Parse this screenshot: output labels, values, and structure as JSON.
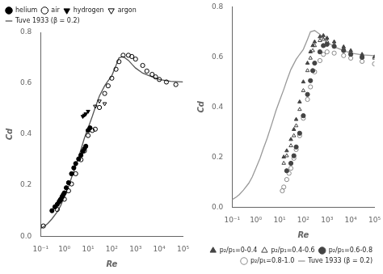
{
  "chart_data": [
    {
      "type": "scatter",
      "xlabel": "Re",
      "ylabel": "Cd",
      "log": "x",
      "grid": false,
      "legend": "upper left",
      "xlim": [
        0.1,
        100000
      ],
      "xticks": [
        {
          "value": 0.1,
          "label": "10⁻¹"
        },
        {
          "value": 1,
          "label": "10⁰"
        },
        {
          "value": 10,
          "label": "10¹"
        },
        {
          "value": 100,
          "label": "10²"
        },
        {
          "value": 1000,
          "label": "10³"
        },
        {
          "value": 10000,
          "label": "10⁴"
        },
        {
          "value": 100000,
          "label": "10⁵"
        }
      ],
      "ylim": [
        0,
        0.8
      ],
      "yticks": [
        {
          "value": 0,
          "label": "0.0"
        },
        0.2,
        0.4,
        0.6,
        0.8
      ],
      "series": [
        {
          "name": "helium",
          "color": "#000000",
          "marker": "circle",
          "x": [
            0.3,
            0.4,
            0.5,
            0.6,
            0.65,
            0.7,
            0.8,
            0.9,
            1.0,
            1.2,
            1.5,
            2.0,
            2.5,
            3.0,
            4.0,
            5.0,
            6.0,
            7.0,
            8.0,
            10.0,
            12.0
          ],
          "values": [
            0.1,
            0.115,
            0.125,
            0.135,
            0.14,
            0.145,
            0.155,
            0.163,
            0.17,
            0.19,
            0.21,
            0.245,
            0.268,
            0.285,
            0.303,
            0.318,
            0.333,
            0.343,
            0.353,
            0.415,
            0.425
          ]
        },
        {
          "name": "air",
          "color": "#000000",
          "marker": "circle-open",
          "x": [
            0.13,
            0.5,
            1.0,
            1.5,
            2.0,
            3.0,
            5.0,
            7.0,
            10.0,
            15.0,
            20.0,
            30.0,
            50.0,
            70.0,
            100.0,
            150.0,
            200.0,
            300.0,
            500.0,
            700.0,
            1000.0,
            2000.0,
            3000.0,
            5000.0,
            7000.0,
            10000.0,
            20000.0,
            50000.0
          ],
          "values": [
            0.04,
            0.105,
            0.145,
            0.178,
            0.205,
            0.245,
            0.3,
            0.335,
            0.395,
            0.415,
            0.42,
            0.505,
            0.56,
            0.59,
            0.62,
            0.655,
            0.685,
            0.71,
            0.71,
            0.705,
            0.695,
            0.67,
            0.648,
            0.635,
            0.625,
            0.615,
            0.605,
            0.595
          ]
        },
        {
          "name": "hydrogen",
          "color": "#000000",
          "marker": "triangle-down",
          "x": [
            6.0,
            7.0,
            8.0,
            10.0
          ],
          "values": [
            0.47,
            0.475,
            0.48,
            0.49
          ]
        },
        {
          "name": "argon",
          "color": "#000000",
          "marker": "triangle-down-open",
          "x": [
            20.0,
            30.0,
            50.0
          ],
          "values": [
            0.51,
            0.53,
            0.52
          ]
        },
        {
          "name": "Tuve 1933 (β = 0.2)",
          "color": "#555555",
          "type": "line",
          "line_style": "solid",
          "x": [
            0.1,
            0.15,
            0.2,
            0.3,
            0.5,
            0.7,
            1.0,
            1.5,
            2.0,
            3.0,
            5.0,
            7.0,
            10,
            15,
            20,
            30,
            50,
            70,
            100,
            150,
            200,
            300,
            500,
            700,
            1000,
            2000,
            5000,
            10000,
            30000,
            100000
          ],
          "values": [
            0.03,
            0.04,
            0.05,
            0.068,
            0.095,
            0.12,
            0.155,
            0.195,
            0.23,
            0.275,
            0.34,
            0.385,
            0.425,
            0.47,
            0.505,
            0.55,
            0.59,
            0.61,
            0.63,
            0.67,
            0.7,
            0.705,
            0.69,
            0.675,
            0.66,
            0.64,
            0.625,
            0.615,
            0.608,
            0.605
          ]
        }
      ]
    },
    {
      "type": "scatter",
      "xlabel": "Re",
      "ylabel": "Cd",
      "log": "x",
      "grid": false,
      "legend": "lower right",
      "xlim": [
        0.1,
        100000
      ],
      "xticks": [
        {
          "value": 0.1,
          "label": "10⁻¹"
        },
        {
          "value": 1,
          "label": "10⁰"
        },
        {
          "value": 10,
          "label": "10¹"
        },
        {
          "value": 100,
          "label": "10²"
        },
        {
          "value": 1000,
          "label": "10³"
        },
        {
          "value": 10000,
          "label": "10⁴"
        },
        {
          "value": 100000,
          "label": "10⁵"
        }
      ],
      "ylim": [
        0,
        0.8
      ],
      "yticks": [
        {
          "value": 0,
          "label": "0.0"
        },
        0.2,
        0.4,
        0.6,
        0.8
      ],
      "series": [
        {
          "name": "p₂/p₁=0-0.4",
          "color": "#444444",
          "marker": "triangle-up",
          "x": [
            15.0,
            20.0,
            30.0,
            40.0,
            50.0,
            70.0,
            100.0,
            150.0,
            200.0,
            250.0,
            300.0,
            500.0,
            700.0,
            1000.0,
            2000.0,
            5000.0,
            10000.0,
            30000.0,
            100000.0
          ],
          "values": [
            0.2,
            0.225,
            0.27,
            0.31,
            0.35,
            0.42,
            0.5,
            0.575,
            0.62,
            0.645,
            0.66,
            0.68,
            0.685,
            0.675,
            0.66,
            0.64,
            0.625,
            0.61,
            0.6
          ]
        },
        {
          "name": "p₂/p₁=0.4-0.6",
          "color": "#444444",
          "marker": "triangle-up-open",
          "x": [
            15.0,
            20.0,
            30.0,
            40.0,
            50.0,
            70.0,
            100.0,
            150.0,
            200.0,
            250.0,
            300.0,
            500.0,
            700.0,
            1000.0,
            2000.0,
            5000.0,
            10000.0,
            30000.0,
            100000.0
          ],
          "values": [
            0.175,
            0.205,
            0.245,
            0.285,
            0.325,
            0.39,
            0.465,
            0.545,
            0.595,
            0.625,
            0.645,
            0.665,
            0.67,
            0.662,
            0.648,
            0.632,
            0.618,
            0.605,
            0.595
          ]
        },
        {
          "name": "p₂/p₁=0.6-0.8",
          "color": "#444444",
          "marker": "circle",
          "x": [
            20.0,
            30.0,
            40.0,
            50.0,
            70.0,
            100.0,
            150.0,
            200.0,
            250.0,
            300.0,
            500.0,
            700.0,
            1000.0,
            2000.0,
            5000.0,
            10000.0,
            30000.0
          ],
          "values": [
            0.145,
            0.175,
            0.205,
            0.24,
            0.295,
            0.365,
            0.45,
            0.505,
            0.545,
            0.575,
            0.62,
            0.645,
            0.65,
            0.642,
            0.625,
            0.61,
            0.598
          ]
        },
        {
          "name": "p₂/p₁=0.8-1.0",
          "color": "#888888",
          "marker": "circle-open",
          "x": [
            13.0,
            15.0,
            20.0,
            25.0,
            30.0,
            40.0,
            50.0,
            70.0,
            100.0,
            150.0,
            200.0,
            300.0,
            500.0,
            700.0,
            1000.0,
            2000.0,
            5000.0,
            10000.0,
            30000.0,
            100000.0
          ],
          "values": [
            0.065,
            0.08,
            0.11,
            0.135,
            0.155,
            0.195,
            0.23,
            0.285,
            0.355,
            0.43,
            0.48,
            0.54,
            0.585,
            0.61,
            0.62,
            0.615,
            0.605,
            0.595,
            0.582,
            0.572
          ]
        },
        {
          "name": "Tuve 1933 (β = 0.2)",
          "color": "#999999",
          "type": "line",
          "line_style": "solid",
          "x": [
            0.1,
            0.15,
            0.2,
            0.3,
            0.5,
            0.7,
            1.0,
            1.5,
            2.0,
            3.0,
            5.0,
            7.0,
            10,
            15,
            20,
            30,
            50,
            70,
            100,
            150,
            200,
            300,
            500,
            700,
            1000,
            2000,
            5000,
            10000,
            30000,
            100000
          ],
          "values": [
            0.03,
            0.04,
            0.05,
            0.068,
            0.095,
            0.12,
            0.155,
            0.195,
            0.23,
            0.275,
            0.34,
            0.385,
            0.425,
            0.47,
            0.505,
            0.55,
            0.59,
            0.61,
            0.63,
            0.67,
            0.7,
            0.705,
            0.69,
            0.675,
            0.66,
            0.64,
            0.625,
            0.615,
            0.608,
            0.605
          ]
        }
      ]
    }
  ]
}
